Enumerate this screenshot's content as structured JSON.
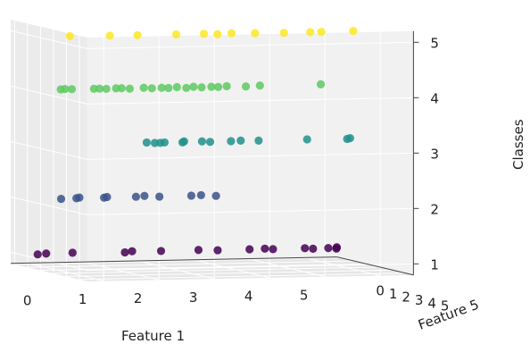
{
  "chart_data": {
    "type": "scatter3d",
    "title": "",
    "xlabel": "Feature 1",
    "ylabel": "Feature 5",
    "zlabel": "Classes",
    "xlim": [
      -0.3,
      5.6
    ],
    "ylim": [
      -0.3,
      5.6
    ],
    "zlim": [
      0.8,
      5.2
    ],
    "xticks": [
      "0",
      "1",
      "2",
      "3",
      "4",
      "5"
    ],
    "yticks": [
      "0",
      "1",
      "2",
      "3",
      "4",
      "5"
    ],
    "zticks": [
      "1",
      "2",
      "3",
      "4",
      "5"
    ],
    "grid": true,
    "colormap": {
      "1": "#440154",
      "2": "#3b528b",
      "3": "#21918c",
      "4": "#5ec962",
      "5": "#fde725"
    },
    "points": [
      {
        "x": 0.0,
        "y": 0.5,
        "z": 1
      },
      {
        "x": 0.2,
        "y": 0.3,
        "z": 1
      },
      {
        "x": 0.7,
        "y": 0.2,
        "z": 1
      },
      {
        "x": 1.6,
        "y": 0.4,
        "z": 1
      },
      {
        "x": 1.8,
        "y": 0.1,
        "z": 1
      },
      {
        "x": 2.3,
        "y": 0.2,
        "z": 1
      },
      {
        "x": 3.0,
        "y": 0.1,
        "z": 1
      },
      {
        "x": 3.3,
        "y": 0.3,
        "z": 1
      },
      {
        "x": 3.9,
        "y": 0.2,
        "z": 1
      },
      {
        "x": 4.2,
        "y": 0.1,
        "z": 1
      },
      {
        "x": 4.3,
        "y": 0.3,
        "z": 1
      },
      {
        "x": 4.9,
        "y": 0.2,
        "z": 1
      },
      {
        "x": 5.0,
        "y": 0.4,
        "z": 1
      },
      {
        "x": 5.3,
        "y": 0.3,
        "z": 1
      },
      {
        "x": 5.5,
        "y": 0.1,
        "z": 1
      },
      {
        "x": 5.4,
        "y": 0.5,
        "z": 1
      },
      {
        "x": 0.4,
        "y": 0.6,
        "z": 2
      },
      {
        "x": 0.7,
        "y": 0.5,
        "z": 2
      },
      {
        "x": 0.8,
        "y": 0.3,
        "z": 2
      },
      {
        "x": 1.2,
        "y": 0.5,
        "z": 2
      },
      {
        "x": 1.3,
        "y": 0.3,
        "z": 2
      },
      {
        "x": 1.8,
        "y": 0.4,
        "z": 2
      },
      {
        "x": 2.0,
        "y": 0.2,
        "z": 2
      },
      {
        "x": 2.2,
        "y": 0.5,
        "z": 2
      },
      {
        "x": 2.8,
        "y": 0.4,
        "z": 2
      },
      {
        "x": 3.0,
        "y": 0.3,
        "z": 2
      },
      {
        "x": 3.2,
        "y": 0.6,
        "z": 2
      },
      {
        "x": 1.9,
        "y": 0.8,
        "z": 3
      },
      {
        "x": 2.0,
        "y": 1.0,
        "z": 3
      },
      {
        "x": 2.1,
        "y": 1.0,
        "z": 3
      },
      {
        "x": 2.2,
        "y": 0.9,
        "z": 3
      },
      {
        "x": 2.5,
        "y": 1.0,
        "z": 3
      },
      {
        "x": 2.6,
        "y": 0.7,
        "z": 3
      },
      {
        "x": 2.9,
        "y": 0.8,
        "z": 3
      },
      {
        "x": 3.0,
        "y": 1.0,
        "z": 3
      },
      {
        "x": 3.4,
        "y": 0.9,
        "z": 3
      },
      {
        "x": 3.6,
        "y": 0.8,
        "z": 3
      },
      {
        "x": 3.9,
        "y": 0.9,
        "z": 3
      },
      {
        "x": 4.8,
        "y": 0.8,
        "z": 3
      },
      {
        "x": 5.5,
        "y": 0.9,
        "z": 3
      },
      {
        "x": 5.6,
        "y": 0.7,
        "z": 3
      },
      {
        "x": 0.3,
        "y": 1.0,
        "z": 4
      },
      {
        "x": 0.4,
        "y": 0.9,
        "z": 4
      },
      {
        "x": 0.5,
        "y": 1.0,
        "z": 4
      },
      {
        "x": 0.9,
        "y": 1.0,
        "z": 4
      },
      {
        "x": 1.0,
        "y": 1.0,
        "z": 4
      },
      {
        "x": 1.1,
        "y": 1.1,
        "z": 4
      },
      {
        "x": 1.3,
        "y": 1.0,
        "z": 4
      },
      {
        "x": 1.4,
        "y": 1.0,
        "z": 4
      },
      {
        "x": 1.5,
        "y": 1.2,
        "z": 4
      },
      {
        "x": 1.8,
        "y": 1.0,
        "z": 4
      },
      {
        "x": 1.9,
        "y": 1.2,
        "z": 4
      },
      {
        "x": 2.1,
        "y": 1.1,
        "z": 4
      },
      {
        "x": 2.2,
        "y": 1.2,
        "z": 4
      },
      {
        "x": 2.4,
        "y": 1.0,
        "z": 4
      },
      {
        "x": 2.5,
        "y": 1.3,
        "z": 4
      },
      {
        "x": 2.7,
        "y": 1.0,
        "z": 4
      },
      {
        "x": 2.8,
        "y": 1.2,
        "z": 4
      },
      {
        "x": 3.0,
        "y": 1.1,
        "z": 4
      },
      {
        "x": 3.1,
        "y": 1.2,
        "z": 4
      },
      {
        "x": 3.3,
        "y": 1.0,
        "z": 4
      },
      {
        "x": 3.6,
        "y": 1.2,
        "z": 4
      },
      {
        "x": 3.9,
        "y": 1.0,
        "z": 4
      },
      {
        "x": 5.0,
        "y": 1.0,
        "z": 4
      },
      {
        "x": 0.3,
        "y": 1.7,
        "z": 5
      },
      {
        "x": 1.0,
        "y": 1.8,
        "z": 5
      },
      {
        "x": 1.5,
        "y": 1.8,
        "z": 5
      },
      {
        "x": 2.2,
        "y": 1.8,
        "z": 5
      },
      {
        "x": 2.7,
        "y": 1.8,
        "z": 5
      },
      {
        "x": 2.9,
        "y": 2.0,
        "z": 5
      },
      {
        "x": 3.2,
        "y": 1.8,
        "z": 5
      },
      {
        "x": 3.6,
        "y": 1.9,
        "z": 5
      },
      {
        "x": 4.1,
        "y": 2.0,
        "z": 5
      },
      {
        "x": 4.6,
        "y": 1.9,
        "z": 5
      },
      {
        "x": 4.8,
        "y": 1.9,
        "z": 5
      },
      {
        "x": 5.4,
        "y": 1.8,
        "z": 5
      }
    ]
  }
}
